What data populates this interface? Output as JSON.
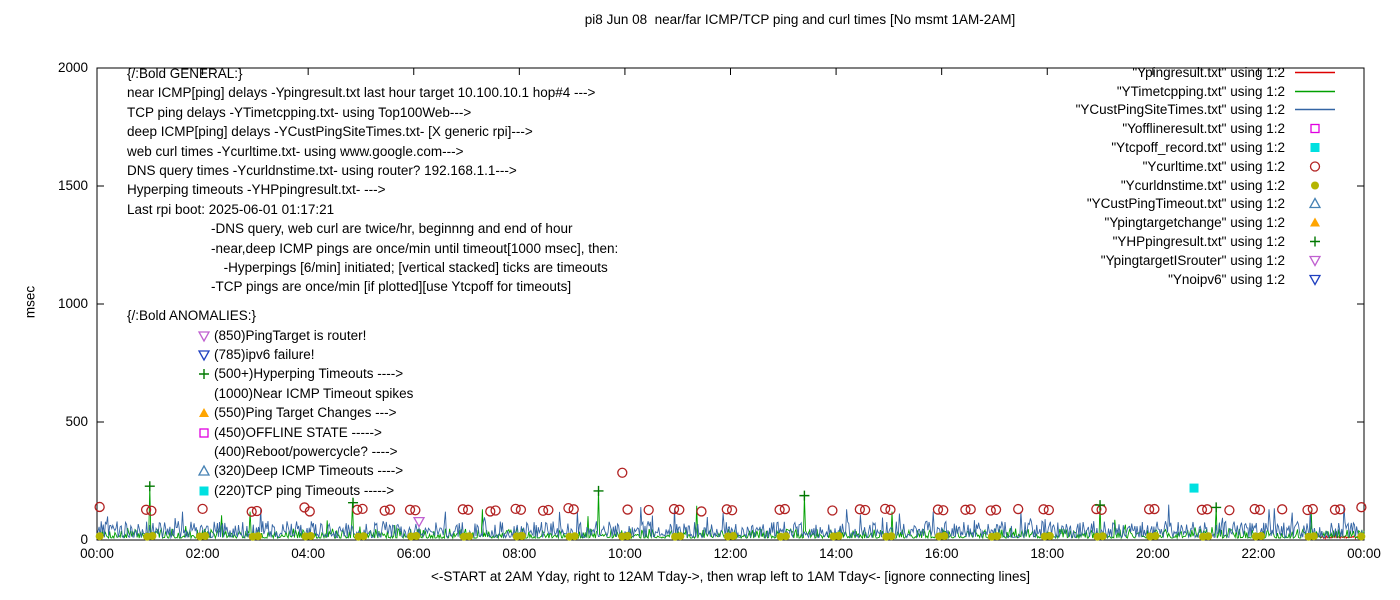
{
  "title": "pi8 Jun 08  near/far ICMP/TCP ping and curl times [No msmt 1AM-2AM]",
  "ylabel": "msec",
  "xcaption": "<-START at 2AM Yday, right to 12AM Tday->, then wrap left to 1AM Tday<- [ignore connecting lines]",
  "legend": [
    {
      "label": "\"Ypingresult.txt\" using 1:2",
      "marker": "line",
      "color": "#dd0000"
    },
    {
      "label": "\"YTimetcpping.txt\" using 1:2",
      "marker": "line",
      "color": "#00a000"
    },
    {
      "label": "\"YCustPingSiteTimes.txt\" using 1:2",
      "marker": "line",
      "color": "#3465a4"
    },
    {
      "label": "\"Yofflineresult.txt\" using 1:2",
      "marker": "square-open",
      "color": "#e000e0"
    },
    {
      "label": "\"Ytcpoff_record.txt\" using 1:2",
      "marker": "square-filled",
      "color": "#00e0e0"
    },
    {
      "label": "\"Ycurltime.txt\" using 1:2",
      "marker": "circle-open",
      "color": "#b22222"
    },
    {
      "label": "\"Ycurldnstime.txt\" using 1:2",
      "marker": "circle-filled",
      "color": "#b5b500"
    },
    {
      "label": "\"YCustPingTimeout.txt\" using 1:2",
      "marker": "triangle-up-open",
      "color": "#4682b4"
    },
    {
      "label": "\"Ypingtargetchange\" using 1:2",
      "marker": "triangle-up-filled",
      "color": "#ffa500"
    },
    {
      "label": "\"YHPpingresult.txt\" using 1:2",
      "marker": "plus",
      "color": "#007800"
    },
    {
      "label": "\"YpingtargetISrouter\" using 1:2",
      "marker": "triangle-down-open",
      "color": "#c060d0"
    },
    {
      "label": "\"Ynoipv6\" using 1:2",
      "marker": "triangle-down-open",
      "color": "#2040c0"
    }
  ],
  "annotations": {
    "general": [
      {
        "text": "{/:Bold GENERAL:}",
        "indent": 0
      },
      {
        "text": "near ICMP[ping] delays -Ypingresult.txt last hour target 10.100.10.1 hop#4 --->",
        "indent": 0
      },
      {
        "text": "TCP ping delays -YTimetcpping.txt- using Top100Web--->",
        "indent": 0
      },
      {
        "text": "deep ICMP[ping] delays -YCustPingSiteTimes.txt- [X generic rpi]--->",
        "indent": 0
      },
      {
        "text": "web curl times -Ycurltime.txt- using www.google.com--->",
        "indent": 0
      },
      {
        "text": "DNS query times -Ycurldnstime.txt- using router? 192.168.1.1--->",
        "indent": 0
      },
      {
        "text": "Hyperping timeouts -YHPpingresult.txt- --->",
        "indent": 0
      },
      {
        "text": "Last rpi boot: 2025-06-01 01:17:21",
        "indent": 0
      },
      {
        "text": "-DNS query, web curl are twice/hr, beginnng and end of hour",
        "indent": 1
      },
      {
        "text": "-near,deep ICMP pings are once/min until timeout[1000 msec], then:",
        "indent": 1
      },
      {
        "text": "-Hyperpings [6/min] initiated; [vertical stacked] ticks are timeouts",
        "indent": 1.15
      },
      {
        "text": "-TCP pings are once/min [if plotted][use Ytcpoff for timeouts]",
        "indent": 1
      }
    ],
    "anomalies_header": "{/:Bold ANOMALIES:}",
    "anomalies": [
      {
        "marker": "triangle-down-open",
        "color": "#c060d0",
        "text": "(850)PingTarget is router!"
      },
      {
        "marker": "triangle-down-open",
        "color": "#2040c0",
        "text": "(785)ipv6 failure!"
      },
      {
        "marker": "plus",
        "color": "#007800",
        "text": "(500+)Hyperping Timeouts ---->"
      },
      {
        "marker": "none",
        "color": "",
        "text": "(1000)Near ICMP Timeout spikes"
      },
      {
        "marker": "triangle-up-filled",
        "color": "#ffa500",
        "text": "(550)Ping Target Changes --->"
      },
      {
        "marker": "square-open",
        "color": "#e000e0",
        "text": "(450)OFFLINE STATE ----->"
      },
      {
        "marker": "none",
        "color": "",
        "text": "(400)Reboot/powercycle? ---->"
      },
      {
        "marker": "triangle-up-open",
        "color": "#4682b4",
        "text": "(320)Deep ICMP Timeouts ---->"
      },
      {
        "marker": "square-filled",
        "color": "#00e0e0",
        "text": "(220)TCP ping Timeouts ----->"
      }
    ]
  },
  "chart_data": {
    "type": "line",
    "title": "pi8 Jun 08  near/far ICMP/TCP ping and curl times [No msmt 1AM-2AM]",
    "xlabel": "<-START at 2AM Yday, right to 12AM Tday->, then wrap left to 1AM Tday<- [ignore connecting lines]",
    "ylabel": "msec",
    "x_range_hours": [
      0,
      24
    ],
    "ylim": [
      0,
      2000
    ],
    "x_tick_labels": [
      "00:00",
      "02:00",
      "04:00",
      "06:00",
      "08:00",
      "10:00",
      "12:00",
      "14:00",
      "16:00",
      "18:00",
      "20:00",
      "22:00",
      "00:00"
    ],
    "y_ticks": [
      0,
      500,
      1000,
      1500,
      2000
    ],
    "legend_position": "top-right-inside",
    "grid": false,
    "series": [
      {
        "name": "Ypingresult.txt",
        "color": "#dd0000",
        "style": "line",
        "xrange": [
          23,
          24
        ],
        "gen": {
          "seed": 99,
          "n": 80,
          "base": 6,
          "jitter": 12,
          "pow": 1,
          "spike_chance": 0.02,
          "spike": 25
        },
        "spikes": []
      },
      {
        "name": "YTimetcpping.txt",
        "color": "#00a000",
        "style": "line",
        "xrange": [
          0,
          24
        ],
        "gen": {
          "seed": 7,
          "n": 1200,
          "base": 8,
          "jitter": 40,
          "pow": 2,
          "spike_chance": 0.02,
          "spike": 60
        },
        "spikes": [
          [
            1.0,
            230
          ],
          [
            2.9,
            120
          ],
          [
            4.85,
            160
          ],
          [
            7.3,
            130
          ],
          [
            9.5,
            210
          ],
          [
            11.35,
            145
          ],
          [
            13.4,
            190
          ],
          [
            15.05,
            120
          ],
          [
            19.0,
            150
          ],
          [
            21.2,
            140
          ],
          [
            23.0,
            125
          ]
        ]
      },
      {
        "name": "YCustPingSiteTimes.txt",
        "color": "#3465a4",
        "style": "line",
        "xrange": [
          0,
          24
        ],
        "gen": {
          "seed": 42,
          "n": 1200,
          "base": 10,
          "jitter": 70,
          "pow": 1.6,
          "spike_chance": 0.04,
          "spike": 70
        },
        "spikes": [
          [
            0.2,
            100
          ],
          [
            3.1,
            130
          ],
          [
            6.6,
            120
          ],
          [
            10.3,
            140
          ],
          [
            14.2,
            130
          ],
          [
            17.5,
            120
          ],
          [
            20.3,
            150
          ],
          [
            22.2,
            130
          ]
        ]
      },
      {
        "name": "Ycurltime.txt",
        "color": "#b22222",
        "style": "marker",
        "marker": "circle-open",
        "points": [
          [
            0.05,
            140
          ],
          [
            0.93,
            128
          ],
          [
            1.03,
            124
          ],
          [
            2.0,
            132
          ],
          [
            2.93,
            120
          ],
          [
            3.03,
            123
          ],
          [
            3.93,
            138
          ],
          [
            4.03,
            121
          ],
          [
            4.93,
            128
          ],
          [
            5.03,
            132
          ],
          [
            5.45,
            124
          ],
          [
            5.55,
            129
          ],
          [
            5.93,
            128
          ],
          [
            6.03,
            126
          ],
          [
            6.93,
            130
          ],
          [
            7.03,
            128
          ],
          [
            7.45,
            121
          ],
          [
            7.55,
            125
          ],
          [
            7.93,
            132
          ],
          [
            8.03,
            128
          ],
          [
            8.45,
            124
          ],
          [
            8.55,
            127
          ],
          [
            8.93,
            135
          ],
          [
            9.03,
            130
          ],
          [
            9.95,
            285
          ],
          [
            10.05,
            129
          ],
          [
            10.45,
            127
          ],
          [
            10.93,
            131
          ],
          [
            11.03,
            128
          ],
          [
            11.45,
            121
          ],
          [
            11.93,
            130
          ],
          [
            12.03,
            126
          ],
          [
            12.93,
            128
          ],
          [
            13.03,
            131
          ],
          [
            13.93,
            125
          ],
          [
            14.45,
            130
          ],
          [
            14.55,
            127
          ],
          [
            14.93,
            132
          ],
          [
            15.03,
            128
          ],
          [
            15.93,
            129
          ],
          [
            16.03,
            126
          ],
          [
            16.45,
            128
          ],
          [
            16.55,
            130
          ],
          [
            16.93,
            125
          ],
          [
            17.03,
            128
          ],
          [
            17.45,
            131
          ],
          [
            17.93,
            130
          ],
          [
            18.03,
            127
          ],
          [
            18.93,
            131
          ],
          [
            19.03,
            128
          ],
          [
            19.93,
            130
          ],
          [
            20.03,
            131
          ],
          [
            20.93,
            128
          ],
          [
            21.03,
            130
          ],
          [
            21.45,
            126
          ],
          [
            21.93,
            131
          ],
          [
            22.03,
            128
          ],
          [
            22.45,
            130
          ],
          [
            22.93,
            127
          ],
          [
            23.03,
            131
          ],
          [
            23.45,
            128
          ],
          [
            23.55,
            130
          ],
          [
            23.95,
            139
          ]
        ]
      },
      {
        "name": "Ycurldnstime.txt",
        "color": "#b5b500",
        "style": "marker",
        "marker": "circle-filled",
        "points": [
          [
            0.05,
            16
          ],
          [
            0.95,
            14
          ],
          [
            1.05,
            17
          ],
          [
            1.95,
            15
          ],
          [
            2.05,
            17
          ],
          [
            2.95,
            14
          ],
          [
            3.05,
            16
          ],
          [
            3.95,
            15
          ],
          [
            4.05,
            17
          ],
          [
            4.95,
            14
          ],
          [
            5.05,
            16
          ],
          [
            5.95,
            15
          ],
          [
            6.05,
            17
          ],
          [
            6.95,
            14
          ],
          [
            7.05,
            16
          ],
          [
            7.95,
            15
          ],
          [
            8.05,
            17
          ],
          [
            8.95,
            14
          ],
          [
            9.05,
            16
          ],
          [
            9.95,
            15
          ],
          [
            10.05,
            17
          ],
          [
            10.95,
            14
          ],
          [
            11.05,
            16
          ],
          [
            11.95,
            15
          ],
          [
            12.05,
            17
          ],
          [
            12.95,
            14
          ],
          [
            13.05,
            16
          ],
          [
            13.95,
            15
          ],
          [
            14.05,
            17
          ],
          [
            14.95,
            14
          ],
          [
            15.05,
            16
          ],
          [
            15.95,
            15
          ],
          [
            16.05,
            17
          ],
          [
            16.95,
            14
          ],
          [
            17.05,
            16
          ],
          [
            17.95,
            15
          ],
          [
            18.05,
            17
          ],
          [
            18.95,
            14
          ],
          [
            19.05,
            16
          ],
          [
            19.95,
            15
          ],
          [
            20.05,
            17
          ],
          [
            20.95,
            14
          ],
          [
            21.05,
            16
          ],
          [
            21.95,
            15
          ],
          [
            22.05,
            17
          ],
          [
            22.95,
            14
          ],
          [
            23.05,
            16
          ],
          [
            23.95,
            15
          ]
        ]
      },
      {
        "name": "Ytcpoff_record.txt",
        "color": "#00e0e0",
        "style": "marker",
        "marker": "square-filled",
        "points": [
          [
            20.78,
            220
          ]
        ]
      },
      {
        "name": "YHPpingresult.txt",
        "color": "#007800",
        "style": "marker",
        "marker": "plus",
        "points": [
          [
            1.0,
            228
          ],
          [
            4.85,
            158
          ],
          [
            9.5,
            208
          ],
          [
            13.4,
            188
          ],
          [
            19.0,
            148
          ],
          [
            21.2,
            138
          ]
        ]
      },
      {
        "name": "YpingtargetISrouter",
        "color": "#c060d0",
        "style": "marker",
        "marker": "triangle-down-open",
        "points": [
          [
            6.1,
            78
          ]
        ]
      },
      {
        "name": "Yofflineresult.txt",
        "color": "#e000e0",
        "style": "marker",
        "marker": "square-open",
        "points": []
      },
      {
        "name": "YCustPingTimeout.txt",
        "color": "#4682b4",
        "style": "marker",
        "marker": "triangle-up-open",
        "points": []
      },
      {
        "name": "Ypingtargetchange",
        "color": "#ffa500",
        "style": "marker",
        "marker": "triangle-up-filled",
        "points": []
      },
      {
        "name": "Ynoipv6",
        "color": "#2040c0",
        "style": "marker",
        "marker": "triangle-down-open",
        "points": []
      }
    ]
  }
}
